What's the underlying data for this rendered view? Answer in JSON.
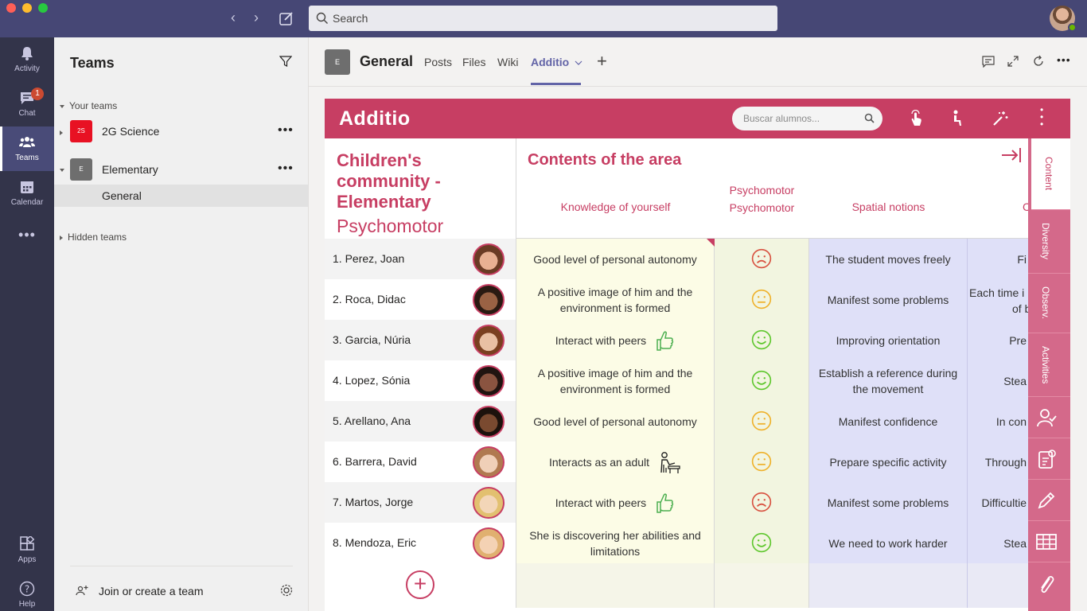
{
  "window": {
    "search_placeholder": "Search"
  },
  "rail": {
    "items": [
      {
        "label": "Activity",
        "icon": "bell-icon"
      },
      {
        "label": "Chat",
        "icon": "chat-icon",
        "badge": "1"
      },
      {
        "label": "Teams",
        "icon": "teams-icon",
        "active": true
      },
      {
        "label": "Calendar",
        "icon": "calendar-icon"
      },
      {
        "label": "Apps",
        "icon": "apps-icon"
      },
      {
        "label": "Help",
        "icon": "help-icon"
      }
    ]
  },
  "teams_panel": {
    "title": "Teams",
    "your_teams_label": "Your teams",
    "teams": [
      {
        "abbr": "2S",
        "name": "2G Science",
        "color": "#e81123"
      },
      {
        "abbr": "E",
        "name": "Elementary",
        "color": "#6e6e6e"
      }
    ],
    "channel": "General",
    "hidden_teams_label": "Hidden teams",
    "join_label": "Join or create a team"
  },
  "channel_header": {
    "avatar": "E",
    "title": "General",
    "tabs": [
      "Posts",
      "Files",
      "Wiki",
      "Additio"
    ],
    "active_tab": "Additio"
  },
  "additio": {
    "logo": "Additio",
    "search_placeholder": "Buscar alumnos...",
    "group_title": "Children's community - Elementary",
    "group_subtitle": "Psychomotor",
    "content_title": "Contents of the area",
    "columns": {
      "c1": "Knowledge of yourself",
      "c2_line1": "Psychomotor",
      "c2_line2": "Psychomotor",
      "c3": "Spatial notions",
      "c4": "C"
    },
    "students": [
      {
        "name": "1. Perez, Joan",
        "c1": "Good level of personal autonomy",
        "c1_icon": "",
        "mood": "sad",
        "c3": "The student moves freely",
        "c4": "Fi"
      },
      {
        "name": "2. Roca, Didac",
        "c1": "A positive image of him and the environment is formed",
        "c1_icon": "",
        "mood": "neutral",
        "c3": "Manifest some problems",
        "c4": "Each time i of b"
      },
      {
        "name": "3. Garcia, Núria",
        "c1": "Interact with peers",
        "c1_icon": "thumbs-up",
        "mood": "happy",
        "c3": "Improving orientation",
        "c4": "Pre"
      },
      {
        "name": "4. Lopez, Sónia",
        "c1": "A positive image of him and the environment is formed",
        "c1_icon": "",
        "mood": "happy",
        "c3": "Establish a reference during the movement",
        "c4": "Stea"
      },
      {
        "name": "5. Arellano, Ana",
        "c1": "Good level of personal autonomy",
        "c1_icon": "",
        "mood": "neutral",
        "c3": "Manifest confidence",
        "c4": "In con"
      },
      {
        "name": "6. Barrera, David",
        "c1": "Interacts as an adult",
        "c1_icon": "teacher",
        "mood": "neutral",
        "c3": "Prepare specific activity",
        "c4": "Through"
      },
      {
        "name": "7. Martos, Jorge",
        "c1": "Interact with peers",
        "c1_icon": "thumbs-up",
        "mood": "sad",
        "c3": "Manifest some problems",
        "c4": "Difficultie"
      },
      {
        "name": "8. Mendoza, Eric",
        "c1": "She is discovering her abilities and limitations",
        "c1_icon": "",
        "mood": "happy",
        "c3": "We need to work harder",
        "c4": "Stea"
      }
    ],
    "side_tabs": [
      "Content",
      "Diversity",
      "Observ.",
      "Activities"
    ],
    "colors": {
      "primary": "#c73e63",
      "happy": "#5ec72d",
      "neutral": "#efb12a",
      "sad": "#d8503f"
    }
  }
}
